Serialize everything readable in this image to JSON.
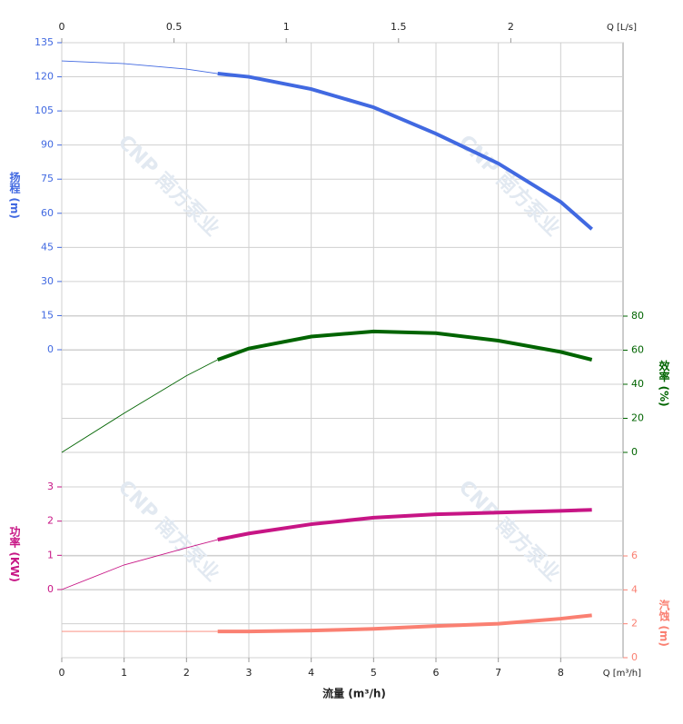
{
  "chart_data": {
    "type": "line",
    "xlabel": "流量 (m³/h)",
    "x_unit": "Q [m³/h]",
    "x2_unit": "Q [L/s]",
    "xlim": [
      0,
      9
    ],
    "xticks": [
      0,
      1,
      2,
      3,
      4,
      5,
      6,
      7,
      8
    ],
    "x2lim": [
      0,
      2.5
    ],
    "x2ticks": [
      0,
      0.5,
      1,
      1.5,
      2
    ],
    "grid": true,
    "watermark": "CNP 南方泵业",
    "operating_range": [
      2.5,
      8.5
    ],
    "series": [
      {
        "label": "扬程 (m)",
        "color": "#4169e1",
        "side": "left",
        "ylim": [
          0,
          135
        ],
        "yticks": [
          0,
          15,
          30,
          45,
          60,
          75,
          90,
          105,
          120,
          135
        ],
        "x": [
          0,
          1,
          2,
          2.5,
          3,
          4,
          5,
          6,
          7,
          8,
          8.5
        ],
        "values": [
          127,
          125.8,
          123.4,
          121.4,
          120,
          114.6,
          106.6,
          95,
          81.9,
          65,
          53
        ]
      },
      {
        "label": "效率 (%)",
        "color": "#006400",
        "side": "right",
        "ylim": [
          0,
          80
        ],
        "yticks": [
          0,
          20,
          40,
          60,
          80
        ],
        "x": [
          0,
          1,
          2,
          2.5,
          3,
          4,
          5,
          6,
          7,
          8,
          8.5
        ],
        "values": [
          0,
          23,
          45,
          54.4,
          61,
          68,
          71,
          70,
          65.6,
          59,
          54.4
        ]
      },
      {
        "label": "功率 (KW)",
        "color": "#c71585",
        "side": "left",
        "ylim": [
          0,
          3
        ],
        "yticks": [
          0,
          1,
          2,
          3
        ],
        "x": [
          0,
          1,
          2,
          2.5,
          3,
          4,
          5,
          6,
          7,
          8,
          8.5
        ],
        "values": [
          0,
          0.72,
          1.22,
          1.46,
          1.64,
          1.91,
          2.1,
          2.2,
          2.25,
          2.3,
          2.33
        ]
      },
      {
        "label": "汽蚀 (m)",
        "color": "#fa8072",
        "side": "right",
        "ylim": [
          0,
          6
        ],
        "yticks": [
          0,
          2,
          4,
          6
        ],
        "x": [
          0,
          1,
          2,
          2.5,
          3,
          4,
          5,
          6,
          7,
          8,
          8.5
        ],
        "values": [
          1.55,
          1.55,
          1.55,
          1.55,
          1.55,
          1.6,
          1.7,
          1.87,
          2.0,
          2.3,
          2.5
        ]
      }
    ]
  }
}
